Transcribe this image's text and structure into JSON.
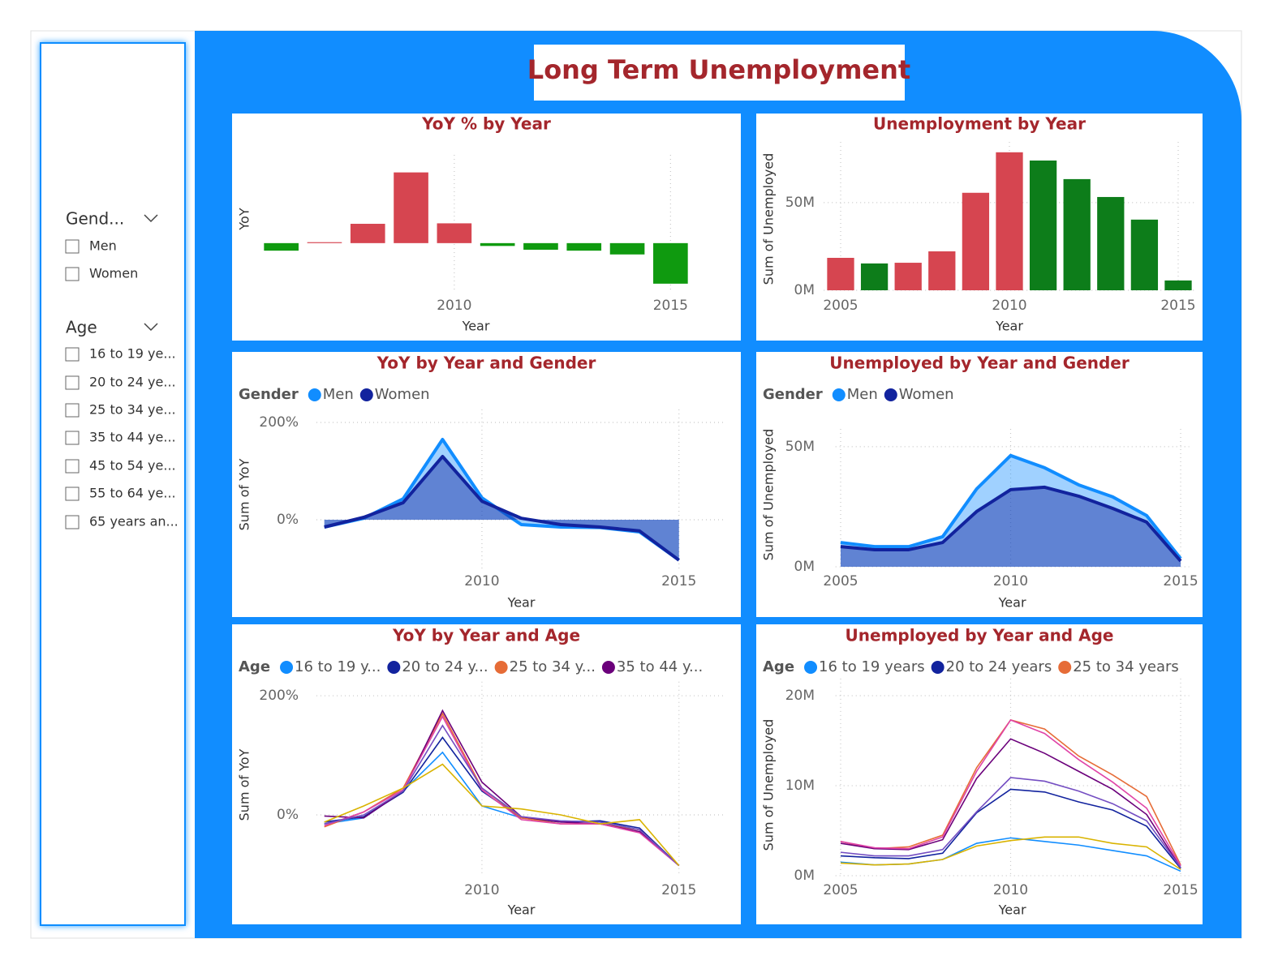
{
  "title": "Long Term Unemployment",
  "slicers": [
    {
      "title": "Gend...",
      "items": [
        "Men",
        "Women"
      ]
    },
    {
      "title": "Age",
      "items": [
        "16 to 19 ye...",
        "20 to 24 ye...",
        "25 to 34 ye...",
        "35 to 44 ye...",
        "45 to 54 ye...",
        "55 to 64 ye...",
        "65 years an..."
      ]
    }
  ],
  "chart_data": [
    {
      "type": "bar",
      "title": "YoY % by Year",
      "x_label": "Year",
      "y_label": "YoY",
      "x": [
        2006,
        2007,
        2008,
        2009,
        2010,
        2011,
        2012,
        2013,
        2014,
        2015
      ],
      "values": [
        -16,
        2,
        41,
        150,
        42,
        -6,
        -14,
        -16,
        -24,
        -86
      ],
      "colors": [
        "#0f9a0f",
        "#d64550",
        "#d64550",
        "#d64550",
        "#d64550",
        "#0f9a0f",
        "#0f9a0f",
        "#0f9a0f",
        "#0f9a0f",
        "#0f9a0f"
      ],
      "xlim": [
        2005.5,
        2015.5
      ],
      "xticks": [
        2010,
        2015
      ],
      "ylim": [
        -100,
        170
      ],
      "yticks": [],
      "grid": true
    },
    {
      "type": "bar",
      "title": "Unemployment by Year",
      "x_label": "Year",
      "y_label": "Sum of Unemployed",
      "x": [
        2005,
        2006,
        2007,
        2008,
        2009,
        2010,
        2011,
        2012,
        2013,
        2014,
        2015
      ],
      "values": [
        18500000,
        15300000,
        15700000,
        22200000,
        55600000,
        78700000,
        74000000,
        63400000,
        53200000,
        40300000,
        5600000
      ],
      "colors": [
        "#d64550",
        "#0d7d1a",
        "#d64550",
        "#d64550",
        "#d64550",
        "#d64550",
        "#0d7d1a",
        "#0d7d1a",
        "#0d7d1a",
        "#0d7d1a",
        "#0d7d1a"
      ],
      "xlim": [
        2004.5,
        2015.5
      ],
      "xticks": [
        2005,
        2010,
        2015
      ],
      "ylim": [
        0,
        80000000
      ],
      "yticks": [
        {
          "value": 0,
          "label": "0M"
        },
        {
          "value": 50000000,
          "label": "50M"
        }
      ],
      "grid": true
    },
    {
      "type": "area",
      "title": "YoY by Year and Gender",
      "x_label": "Year",
      "y_label": "Sum of YoY",
      "legend_title": "Gender",
      "x": [
        2006,
        2007,
        2008,
        2009,
        2010,
        2011,
        2012,
        2013,
        2014,
        2015
      ],
      "series": [
        {
          "name": "Men",
          "color": "#118dff",
          "values": [
            -15,
            3,
            43,
            165,
            45,
            -10,
            -15,
            -16,
            -25,
            -83
          ]
        },
        {
          "name": "Women",
          "color": "#12239e",
          "values": [
            -15,
            5,
            35,
            130,
            38,
            3,
            -10,
            -15,
            -23,
            -83
          ]
        }
      ],
      "xlim": [
        2005.8,
        2016.2
      ],
      "xticks": [
        2010,
        2015
      ],
      "ylim": [
        -100,
        210
      ],
      "yticks": [
        {
          "value": 0,
          "label": "0%"
        },
        {
          "value": 200,
          "label": "200%"
        }
      ],
      "grid": true
    },
    {
      "type": "area",
      "title": "Unemployed by Year and Gender",
      "x_label": "Year",
      "y_label": "Sum of Unemployed",
      "legend_title": "Gender",
      "x": [
        2005,
        2006,
        2007,
        2008,
        2009,
        2010,
        2011,
        2012,
        2013,
        2014,
        2015
      ],
      "series": [
        {
          "name": "Men",
          "color": "#118dff",
          "values": [
            10100000,
            8400000,
            8400000,
            12500000,
            32400000,
            46300000,
            41200000,
            34100000,
            29100000,
            21300000,
            3400000
          ]
        },
        {
          "name": "Women",
          "color": "#12239e",
          "values": [
            8400000,
            7100000,
            7100000,
            10100000,
            23000000,
            32100000,
            33100000,
            29400000,
            24300000,
            18600000,
            2400000
          ]
        }
      ],
      "xlim": [
        2004.85,
        2015.25
      ],
      "xticks": [
        2005,
        2010,
        2015
      ],
      "ylim": [
        0,
        54000000
      ],
      "yticks": [
        {
          "value": 0,
          "label": "0M"
        },
        {
          "value": 50000000,
          "label": "50M"
        }
      ],
      "grid": true
    },
    {
      "type": "line",
      "title": "YoY by Year and Age",
      "x_label": "Year",
      "y_label": "Sum of YoY",
      "legend_title": "Age",
      "x": [
        2006,
        2007,
        2008,
        2009,
        2010,
        2011,
        2012,
        2013,
        2014,
        2015
      ],
      "series": [
        {
          "name": "16 to 19 y...",
          "color": "#118dff",
          "values": [
            -15,
            -5,
            40,
            105,
            15,
            -5,
            -10,
            -12,
            -25,
            -85
          ]
        },
        {
          "name": "20 to 24 y...",
          "color": "#12239e",
          "values": [
            -12,
            -3,
            38,
            130,
            40,
            -5,
            -12,
            -10,
            -22,
            -85
          ]
        },
        {
          "name": "25 to 34 y...",
          "color": "#e66c37",
          "values": [
            -20,
            5,
            45,
            170,
            45,
            -5,
            -15,
            -15,
            -25,
            -85
          ]
        },
        {
          "name": "35 to 44 y...",
          "color": "#6b007b",
          "values": [
            -2,
            -5,
            40,
            175,
            55,
            -3,
            -12,
            -15,
            -28,
            -85
          ]
        },
        {
          "color": "#e044a7",
          "values": [
            -18,
            5,
            42,
            165,
            42,
            -8,
            -15,
            -15,
            -30,
            -85
          ]
        },
        {
          "color": "#744ec2",
          "values": [
            -15,
            0,
            40,
            150,
            45,
            -3,
            -10,
            -12,
            -25,
            -85
          ]
        },
        {
          "color": "#d9b300",
          "values": [
            -12,
            15,
            45,
            85,
            15,
            10,
            0,
            -15,
            -8,
            -85
          ]
        }
      ],
      "xlim": [
        2005.8,
        2016.2
      ],
      "xticks": [
        2010,
        2015
      ],
      "ylim": [
        -100,
        210
      ],
      "yticks": [
        {
          "value": 0,
          "label": "0%"
        },
        {
          "value": 200,
          "label": "200%"
        }
      ],
      "grid": true
    },
    {
      "type": "line",
      "title": "Unemployed by Year and Age",
      "x_label": "Year",
      "y_label": "Sum of Unemployed",
      "legend_title": "Age",
      "x": [
        2005,
        2006,
        2007,
        2008,
        2009,
        2010,
        2011,
        2012,
        2013,
        2014,
        2015
      ],
      "series": [
        {
          "name": "16 to 19 years",
          "color": "#118dff",
          "values": [
            1500000,
            1200000,
            1300000,
            1800000,
            3600000,
            4200000,
            3800000,
            3400000,
            2800000,
            2200000,
            500000
          ]
        },
        {
          "name": "20 to 24 years",
          "color": "#12239e",
          "values": [
            2200000,
            2000000,
            1900000,
            2500000,
            7000000,
            9600000,
            9300000,
            8200000,
            7300000,
            5500000,
            800000
          ]
        },
        {
          "name": "25 to 34 years",
          "color": "#e66c37",
          "values": [
            3800000,
            3000000,
            3200000,
            4500000,
            12000000,
            17300000,
            16300000,
            13300000,
            11200000,
            8800000,
            1200000
          ]
        },
        {
          "color": "#6b007b",
          "values": [
            3600000,
            3000000,
            2900000,
            4000000,
            10800000,
            15200000,
            13600000,
            11600000,
            9600000,
            6800000,
            900000
          ]
        },
        {
          "color": "#e044a7",
          "values": [
            3800000,
            3100000,
            3000000,
            4300000,
            11600000,
            17300000,
            15800000,
            12900000,
            10400000,
            7500000,
            1100000
          ]
        },
        {
          "color": "#744ec2",
          "values": [
            2600000,
            2200000,
            2200000,
            2900000,
            7100000,
            10900000,
            10500000,
            9400000,
            8000000,
            6100000,
            900000
          ]
        },
        {
          "color": "#d9b300",
          "values": [
            1400000,
            1200000,
            1300000,
            1800000,
            3300000,
            3900000,
            4300000,
            4300000,
            3600000,
            3200000,
            700000
          ]
        }
      ],
      "xlim": [
        2004.85,
        2015.25
      ],
      "xticks": [
        2005,
        2010,
        2015
      ],
      "ylim": [
        0,
        21000000
      ],
      "yticks": [
        {
          "value": 0,
          "label": "0M"
        },
        {
          "value": 10000000,
          "label": "10M"
        },
        {
          "value": 20000000,
          "label": "20M"
        }
      ],
      "grid": true
    }
  ]
}
